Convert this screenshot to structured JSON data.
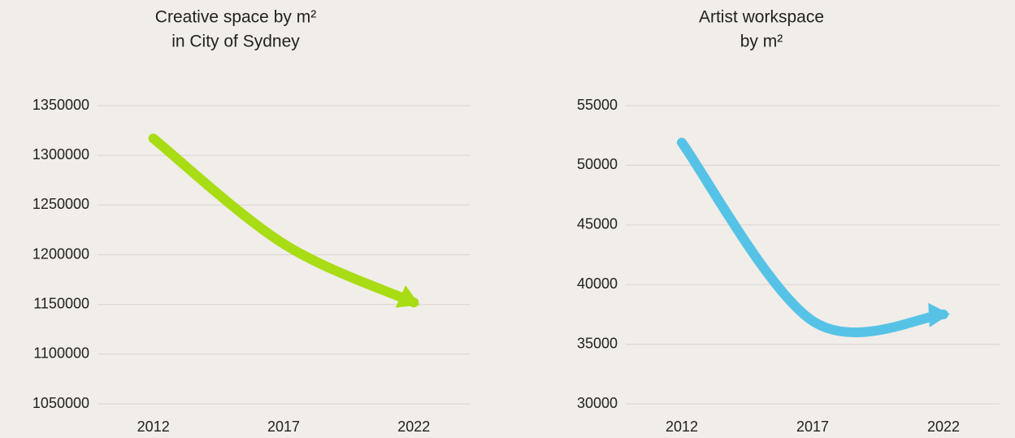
{
  "chart_data": [
    {
      "type": "line",
      "title": [
        "Creative space by m²",
        "in City of Sydney"
      ],
      "categories": [
        "2012",
        "2017",
        "2022"
      ],
      "series": [
        {
          "color": "#a8dc14",
          "values": [
            1317000,
            1211000,
            1152000
          ]
        }
      ],
      "ylim": [
        1050000,
        1350000
      ],
      "yticks": [
        1050000,
        1100000,
        1150000,
        1200000,
        1250000,
        1300000,
        1350000
      ],
      "grid": true
    },
    {
      "type": "line",
      "title": [
        "Artist workspace",
        "by m²"
      ],
      "categories": [
        "2012",
        "2017",
        "2022"
      ],
      "series": [
        {
          "color": "#56c3e6",
          "values": [
            51900,
            36950,
            37500
          ]
        }
      ],
      "ylim": [
        30000,
        55000
      ],
      "yticks": [
        30000,
        35000,
        40000,
        45000,
        50000,
        55000
      ],
      "grid": true
    }
  ]
}
